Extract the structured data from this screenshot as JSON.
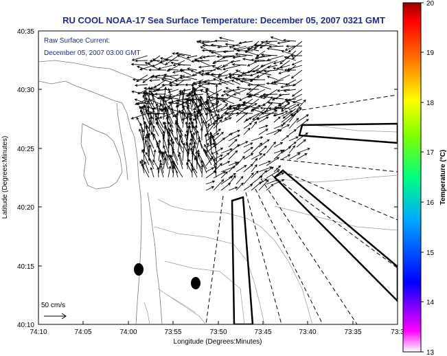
{
  "title": "RU COOL  NOAA-17  Sea Surface Temperature:  December 05, 2007 0321 GMT",
  "annotation": {
    "line1": "Raw Surface Current:",
    "line2": "December 05, 2007 03:00 GMT"
  },
  "scale": {
    "label": "50 cm/s"
  },
  "axes": {
    "xlabel": "Longitude (Degrees:Minutes)",
    "ylabel": "Latitude (Degrees:Minutes)",
    "x_ticks": [
      "74:10",
      "74:05",
      "74:00",
      "73:55",
      "73:50",
      "73:45",
      "73:40",
      "73:35",
      "73:3"
    ],
    "y_ticks": [
      "40:35",
      "40:30",
      "40:25",
      "40:20",
      "40:15",
      "40:10"
    ]
  },
  "colorbar": {
    "label": "Temperature (°C)",
    "ticks": [
      "20",
      "19",
      "18",
      "17",
      "16",
      "15",
      "14",
      "13"
    ],
    "colors": [
      "#ff00ff",
      "#0000ff",
      "#00ffff",
      "#00ff00",
      "#ffff00",
      "#ff8000",
      "#ff0000",
      "#8b0000"
    ]
  },
  "colors": {
    "title": "#1f2a9a",
    "annotation": "#1f2a9a",
    "coast": "#777777",
    "vectors": "#000000"
  }
}
